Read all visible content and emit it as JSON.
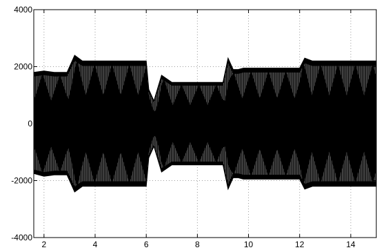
{
  "chart_data": {
    "type": "area",
    "title": "",
    "xlabel": "",
    "ylabel": "",
    "xlim": [
      1.6,
      15.0
    ],
    "ylim": [
      -4000,
      4000
    ],
    "grid": true,
    "legend": "none",
    "x_ticks": [
      2,
      4,
      6,
      8,
      10,
      12,
      14
    ],
    "y_ticks": [
      4000,
      2000,
      0,
      -2000,
      -4000
    ],
    "x_tick_labels": [
      "2",
      "4",
      "6",
      "8",
      "10",
      "12",
      "14"
    ],
    "y_tick_labels": [
      "4000",
      "2000",
      "0",
      "-2000",
      "-4000"
    ],
    "series": [
      {
        "color": "#000000",
        "x": [
          1.6,
          2.0,
          2.4,
          2.9,
          3.2,
          3.5,
          4.0,
          5.0,
          6.0,
          6.1,
          6.3,
          6.6,
          7.0,
          7.5,
          8.0,
          8.5,
          9.0,
          9.2,
          9.4,
          9.6,
          9.8,
          10.0,
          11.0,
          12.0,
          12.2,
          12.5,
          13.0,
          14.0,
          15.0
        ],
        "upper": [
          1800,
          1850,
          1800,
          1800,
          2400,
          2200,
          2200,
          2200,
          2200,
          1200,
          800,
          1700,
          1450,
          1450,
          1450,
          1450,
          1450,
          2300,
          1900,
          1900,
          1950,
          1950,
          1950,
          1950,
          2300,
          2200,
          2200,
          2200,
          2200
        ],
        "lower": [
          -1750,
          -1850,
          -1800,
          -1800,
          -2400,
          -2200,
          -2200,
          -2200,
          -2200,
          -1200,
          -800,
          -1700,
          -1450,
          -1450,
          -1450,
          -1450,
          -1450,
          -2300,
          -1900,
          -1900,
          -1950,
          -1950,
          -1950,
          -1950,
          -2300,
          -2200,
          -2200,
          -2200,
          -2200
        ]
      }
    ]
  }
}
